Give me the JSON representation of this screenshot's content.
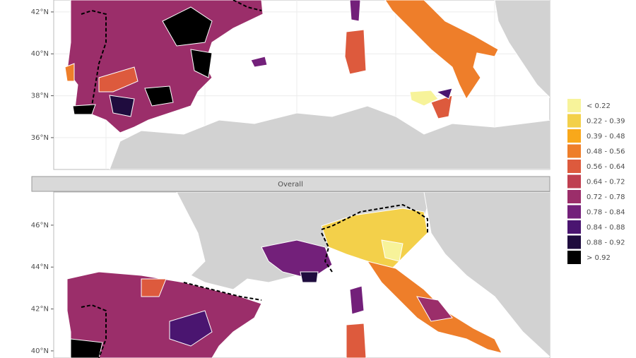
{
  "panels": [
    {
      "ylim": [
        34.48,
        42.57
      ],
      "yticks": [
        {
          "value": 42,
          "label": "42°N"
        },
        {
          "value": 40,
          "label": "40°N"
        },
        {
          "value": 38,
          "label": "38°N"
        },
        {
          "value": 36,
          "label": "36°N"
        }
      ]
    },
    {
      "strip": "Overall",
      "ylim": [
        39.66,
        47.58
      ],
      "yticks": [
        {
          "value": 46,
          "label": "46°N"
        },
        {
          "value": 44,
          "label": "44°N"
        },
        {
          "value": 42,
          "label": "42°N"
        },
        {
          "value": 40,
          "label": "40°N"
        }
      ]
    }
  ],
  "legend": {
    "items": [
      {
        "label": "< 0.22",
        "color": "#f7f39a"
      },
      {
        "label": "0.22 - 0.39",
        "color": "#f3d04a"
      },
      {
        "label": "0.39 - 0.48",
        "color": "#f9a81a"
      },
      {
        "label": "0.48 - 0.56",
        "color": "#ee7e2a"
      },
      {
        "label": "0.56 - 0.64",
        "color": "#dd5a3d"
      },
      {
        "label": "0.64 - 0.72",
        "color": "#bf3f50"
      },
      {
        "label": "0.72 - 0.78",
        "color": "#9b2e6a"
      },
      {
        "label": "0.78 - 0.84",
        "color": "#73207a"
      },
      {
        "label": "0.84 - 0.88",
        "color": "#4a1570"
      },
      {
        "label": "0.88 - 0.92",
        "color": "#1f0c3e"
      },
      {
        "label": "> 0.92",
        "color": "#000000"
      }
    ]
  }
}
